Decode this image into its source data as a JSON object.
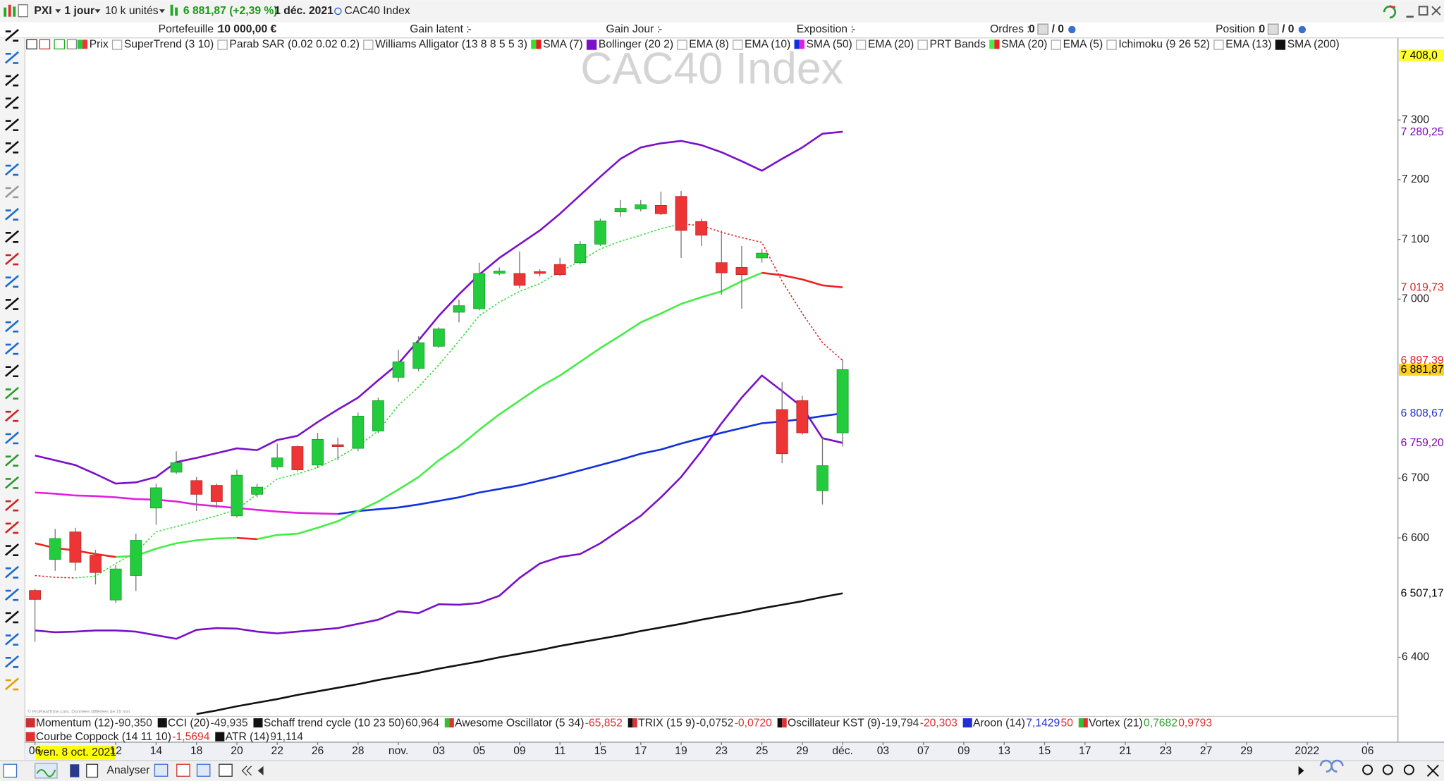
{
  "toolbar": {
    "symbol": "PXI",
    "period": "1 jour",
    "quantity": "10 k unités",
    "price": "6 881,87 (+2,39 %)",
    "date": "1 déc. 2021",
    "instrument": "CAC40 Index"
  },
  "account": {
    "portfolio_label": "Portefeuille :",
    "portfolio": "10 000,00 €",
    "unrealized_label": "Gain latent :",
    "unrealized": "-",
    "day_gain_label": "Gain Jour :",
    "day_gain": "-",
    "exposure_label": "Exposition :",
    "exposure": "-",
    "orders_label": "Ordres :",
    "orders": "0",
    "orders_pending": "/ 0",
    "position_label": "Position :",
    "position": "0",
    "position_pending": "/ 0"
  },
  "chart_data": {
    "type": "candlestick",
    "title": "CAC40 Index",
    "xlim": [
      -0.5,
      67.5
    ],
    "xticks": [
      {
        "value": 0,
        "label": "06"
      },
      {
        "value": 4,
        "label": "12"
      },
      {
        "value": 6,
        "label": "14"
      },
      {
        "value": 8,
        "label": "18"
      },
      {
        "value": 10,
        "label": "20"
      },
      {
        "value": 12,
        "label": "22"
      },
      {
        "value": 14,
        "label": "26"
      },
      {
        "value": 16,
        "label": "28"
      },
      {
        "value": 18,
        "label": "nov."
      },
      {
        "value": 20,
        "label": "03"
      },
      {
        "value": 22,
        "label": "05"
      },
      {
        "value": 24,
        "label": "09"
      },
      {
        "value": 26,
        "label": "11"
      },
      {
        "value": 28,
        "label": "15"
      },
      {
        "value": 30,
        "label": "17"
      },
      {
        "value": 32,
        "label": "19"
      },
      {
        "value": 34,
        "label": "23"
      },
      {
        "value": 36,
        "label": "25"
      },
      {
        "value": 38,
        "label": "29"
      },
      {
        "value": 40,
        "label": "déc."
      },
      {
        "value": 42,
        "label": "03"
      },
      {
        "value": 44,
        "label": "07"
      },
      {
        "value": 46,
        "label": "09"
      },
      {
        "value": 48,
        "label": "13"
      },
      {
        "value": 50,
        "label": "15"
      },
      {
        "value": 52,
        "label": "17"
      },
      {
        "value": 54,
        "label": "21"
      },
      {
        "value": 56,
        "label": "23"
      },
      {
        "value": 58,
        "label": "27"
      },
      {
        "value": 60,
        "label": "29"
      },
      {
        "value": 63,
        "label": "2022"
      },
      {
        "value": 66,
        "label": "06"
      }
    ],
    "ylim": [
      6301,
      7436
    ],
    "yticks": [
      {
        "value": 6400,
        "label": "6 400"
      },
      {
        "value": 6600,
        "label": "6 600"
      },
      {
        "value": 6700,
        "label": "6 700"
      },
      {
        "value": 7000,
        "label": "7 000"
      },
      {
        "value": 7100,
        "label": "7 100"
      },
      {
        "value": 7200,
        "label": "7 200"
      },
      {
        "value": 7300,
        "label": "7 300"
      }
    ],
    "series": [
      {
        "name": "Prix",
        "color": "#22cc3c",
        "down_color": "#ee3535",
        "open": [
          6512,
          6564,
          6610,
          6571,
          6496,
          6537,
          6650,
          6710,
          6696,
          6688,
          6637,
          6673,
          6719,
          6753,
          6722,
          6756,
          6750,
          6779,
          6869,
          6884,
          6921,
          6978,
          6984,
          7043,
          7043,
          7046,
          7058,
          7061,
          7092,
          7146,
          7151,
          7157,
          7172,
          7130,
          7061,
          7053,
          7069,
          6815,
          6830,
          6679,
          6776
        ],
        "high": [
          6515,
          6615,
          6617,
          6580,
          6555,
          6607,
          6691,
          6745,
          6702,
          6691,
          6714,
          6691,
          6758,
          6755,
          6776,
          6768,
          6810,
          6835,
          6915,
          6938,
          6953,
          6999,
          7061,
          7053,
          7080,
          7050,
          7069,
          7097,
          7135,
          7166,
          7166,
          7180,
          7181,
          7135,
          7115,
          7089,
          7084,
          6861,
          6838,
          6768,
          6899
        ],
        "low": [
          6426,
          6545,
          6545,
          6522,
          6491,
          6511,
          6622,
          6707,
          6645,
          6650,
          6634,
          6668,
          6714,
          6711,
          6717,
          6730,
          6745,
          6776,
          6861,
          6879,
          6918,
          6961,
          6981,
          7040,
          7018,
          7038,
          7038,
          7058,
          7089,
          7138,
          7147,
          7141,
          7069,
          7089,
          7007,
          6984,
          7061,
          6725,
          6773,
          6656,
          6753
        ],
        "close": [
          6497,
          6599,
          6559,
          6542,
          6548,
          6596,
          6684,
          6726,
          6673,
          6661,
          6705,
          6685,
          6734,
          6714,
          6765,
          6753,
          6804,
          6830,
          6895,
          6927,
          6950,
          6989,
          7043,
          7047,
          7023,
          7043,
          7041,
          7092,
          7131,
          7152,
          7158,
          7143,
          7115,
          7107,
          7044,
          7041,
          7077,
          6741,
          6776,
          6721,
          6881.87
        ]
      },
      {
        "name": "SuperTrend (3 10)"
      },
      {
        "name": "Parab SAR (0.02 0.02 0.2)"
      },
      {
        "name": "Williams Alligator (13 8 8 5 5 3)"
      },
      {
        "name": "SMA (7)",
        "color": "#33dd33",
        "down_color": "#e02020",
        "line_style": "dotted",
        "values": [
          6537,
          6534,
          6533,
          6536,
          6557,
          6576,
          6610,
          6619,
          6628,
          6637,
          6648,
          6673,
          6699,
          6707,
          6718,
          6734,
          6754,
          6779,
          6822,
          6853,
          6890,
          6930,
          6972,
          6995,
          7013,
          7026,
          7046,
          7064,
          7084,
          7097,
          7107,
          7118,
          7126,
          7123,
          7112,
          7103,
          7095,
          7030,
          6976,
          6927,
          6897.39
        ]
      },
      {
        "name": "Bollinger (20 2)",
        "color": "#7a10c8",
        "values": [
          6738,
          6730,
          6722,
          6707,
          6691,
          6693,
          6702,
          6727,
          6734,
          6742,
          6750,
          6747,
          6764,
          6771,
          6794,
          6815,
          6835,
          6864,
          6892,
          6931,
          6972,
          7008,
          7041,
          7069,
          7092,
          7115,
          7143,
          7174,
          7205,
          7235,
          7254,
          7261,
          7265,
          7258,
          7246,
          7231,
          7215,
          7235,
          7254,
          7277,
          7280.25
        ],
        "lower": [
          6445,
          6442,
          6443,
          6445,
          6445,
          6443,
          6437,
          6431,
          6446,
          6449,
          6448,
          6443,
          6440,
          6443,
          6446,
          6449,
          6456,
          6463,
          6477,
          6474,
          6489,
          6488,
          6491,
          6503,
          6533,
          6557,
          6568,
          6573,
          6591,
          6614,
          6637,
          6668,
          6702,
          6745,
          6792,
          6835,
          6872,
          6846,
          6819,
          6767,
          6759.2
        ]
      },
      {
        "name": "EMA (8)"
      },
      {
        "name": "EMA (10)"
      },
      {
        "name": "SMA (50)",
        "color": "#1030e0",
        "down_color": "#e020e0",
        "values": [
          6676,
          6674,
          6671,
          6670,
          6668,
          6665,
          6664,
          6661,
          6656,
          6653,
          6650,
          6647,
          6644,
          6642,
          6641,
          6640,
          6645,
          6648,
          6651,
          6656,
          6662,
          6668,
          6676,
          6682,
          6688,
          6696,
          6704,
          6713,
          6722,
          6731,
          6741,
          6748,
          6758,
          6767,
          6776,
          6784,
          6792,
          6795,
          6799,
          6804,
          6808.67
        ]
      },
      {
        "name": "EMA (20)"
      },
      {
        "name": "PRT Bands"
      },
      {
        "name": "SMA (20)",
        "color": "#44ee44",
        "down_color": "#ee2222",
        "values": [
          6591,
          6583,
          6579,
          6573,
          6568,
          6570,
          6582,
          6591,
          6596,
          6599,
          6600,
          6598,
          6605,
          6607,
          6617,
          6628,
          6645,
          6661,
          6681,
          6702,
          6730,
          6753,
          6781,
          6807,
          6830,
          6853,
          6872,
          6895,
          6918,
          6939,
          6961,
          6976,
          6992,
          7003,
          7013,
          7030,
          7044,
          7040,
          7033,
          7023,
          7019.73
        ]
      },
      {
        "name": "EMA (5)"
      },
      {
        "name": "Ichimoku (9 26 52)"
      },
      {
        "name": "EMA (13)"
      },
      {
        "name": "SMA (200)",
        "color": "#111111",
        "values": [
          null,
          null,
          null,
          null,
          null,
          null,
          null,
          null,
          6305,
          6311,
          6318,
          6324,
          6330,
          6337,
          6343,
          6349,
          6355,
          6362,
          6368,
          6374,
          6381,
          6387,
          6393,
          6400,
          6406,
          6412,
          6419,
          6425,
          6431,
          6437,
          6444,
          6450,
          6456,
          6463,
          6469,
          6475,
          6482,
          6488,
          6494,
          6501,
          6507.17
        ]
      }
    ],
    "price_tags": [
      {
        "value": 7408.0,
        "label": "7 408,0",
        "color": "#000000",
        "background": "#ffff33"
      },
      {
        "value": 7280.25,
        "label": "7 280,25",
        "color": "#8000c0"
      },
      {
        "value": 7019.73,
        "label": "7 019,73",
        "color": "#e02020"
      },
      {
        "value": 6897.39,
        "label": "6 897,39",
        "color": "#e02020"
      },
      {
        "value": 6881.87,
        "label": "6 881,87",
        "color": "#000000",
        "background": "#ffd21f"
      },
      {
        "value": 6808.67,
        "label": "6 808,67",
        "color": "#2030d0"
      },
      {
        "value": 6759.2,
        "label": "6 759,20",
        "color": "#8000c0"
      },
      {
        "value": 6507.17,
        "label": "6 507,17",
        "color": "#000000"
      }
    ]
  },
  "oscillators": [
    {
      "name": "Momentum (12)",
      "color": "#cc3030",
      "readings": [
        {
          "text": "-90,350",
          "color": "#333333"
        }
      ]
    },
    {
      "name": "CCI (20)",
      "color": "#111111",
      "readings": [
        {
          "text": "-49,935",
          "color": "#333333"
        }
      ]
    },
    {
      "name": "Schaff trend cycle (10 23 50)",
      "color": "#111111",
      "readings": [
        {
          "text": "60,964",
          "color": "#333333"
        }
      ]
    },
    {
      "name": "Awesome Oscillator (5 34)",
      "color": "#30c030",
      "down_color": "#e03030",
      "readings": [
        {
          "text": "-65,852",
          "color": "#e03030"
        }
      ]
    },
    {
      "name": "TRIX (15 9)",
      "color": "#111111",
      "down_color": "#e03030",
      "readings": [
        {
          "text": "-0,0752",
          "color": "#333333"
        },
        {
          "text": "-0,0720",
          "color": "#e03030"
        }
      ]
    },
    {
      "name": "Oscillateur KST (9)",
      "color": "#111111",
      "down_color": "#e03030",
      "readings": [
        {
          "text": "-19,794",
          "color": "#333333"
        },
        {
          "text": "-20,303",
          "color": "#e03030"
        }
      ]
    },
    {
      "name": "Aroon (14)",
      "color": "#2030d0",
      "readings": [
        {
          "text": "7,1429",
          "color": "#2030d0"
        },
        {
          "text": "50",
          "color": "#e03030"
        }
      ]
    },
    {
      "name": "Vortex (21)",
      "color": "#30c030",
      "down_color": "#e03030",
      "readings": [
        {
          "text": "0,7682",
          "color": "#30a030"
        },
        {
          "text": "0,9793",
          "color": "#e03030"
        }
      ]
    },
    {
      "name": "Courbe Coppock (14 11 10)",
      "color": "#e03030",
      "readings": [
        {
          "text": "-1,5694",
          "color": "#e03030"
        }
      ]
    },
    {
      "name": "ATR (14)",
      "color": "#111111",
      "readings": [
        {
          "text": "91,114",
          "color": "#333333"
        }
      ]
    }
  ],
  "crosshair_date": "ven. 8 oct. 2021",
  "copyright": "© ProRealTime.com. Données différées de 15 min",
  "footer": {
    "analyse": "Analyser"
  }
}
